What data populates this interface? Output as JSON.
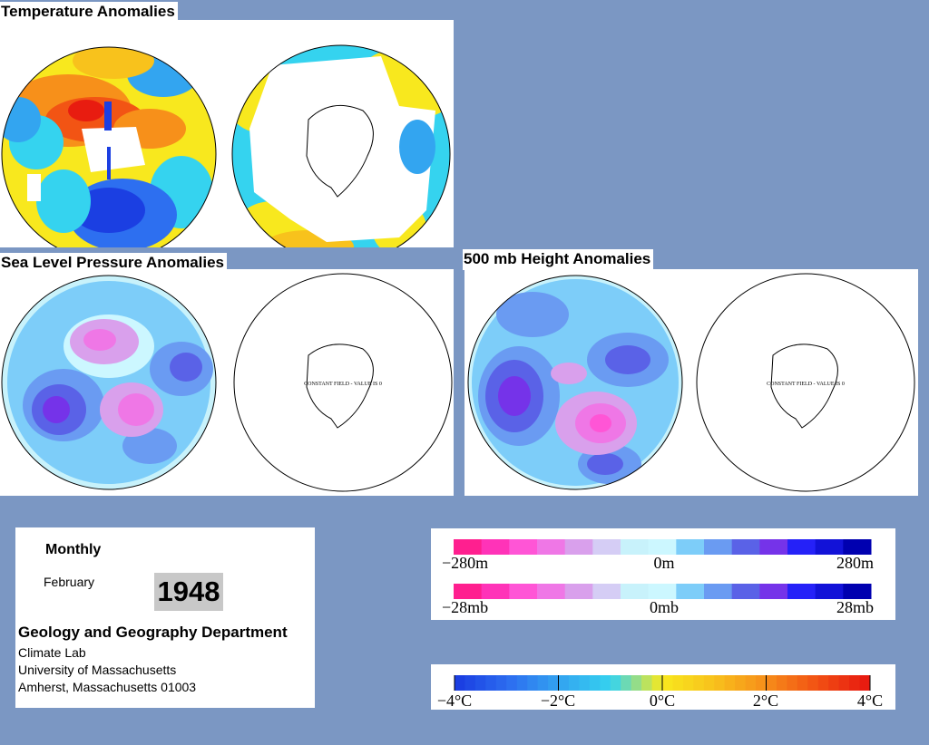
{
  "titles": {
    "temperature": "Temperature Anomalies",
    "slp": "Sea Level Pressure Anomalies",
    "height": "500 mb Height Anomalies"
  },
  "map_note": "CONSTANT FIELD - VALUE IS 0",
  "info": {
    "period": "Monthly",
    "month": "February",
    "year": "1948",
    "department": "Geology and Geography Department",
    "lab": "Climate Lab",
    "university": "University of Massachusetts",
    "address": "Amherst, Massachusetts 01003"
  },
  "legends": {
    "height": {
      "left": "−280m",
      "mid": "0m",
      "right": "280m"
    },
    "pressure": {
      "left": "−28mb",
      "mid": "0mb",
      "right": "28mb"
    },
    "temperature": {
      "l4": "−4°C",
      "l2": "−2°C",
      "l0": "0°C",
      "l2p": "2°C",
      "l4p": "4°C"
    }
  },
  "colors": {
    "background": "#7b97c3",
    "anomaly_scale": [
      "#ff1f8f",
      "#ff33b8",
      "#ff55d6",
      "#ef77e6",
      "#d9a0ec",
      "#d5cdf5",
      "#c8f2fb",
      "#ccf7ff",
      "#7dcdf9",
      "#6a9bf2",
      "#5a62e7",
      "#7533e9",
      "#2521f8",
      "#1212d8",
      "#0000b0"
    ],
    "temperature_scale": [
      "#1b3fe2",
      "#2d6ff0",
      "#33a5f0",
      "#35d3ef",
      "#f8e81e",
      "#f8c21c",
      "#f7901a",
      "#f25414",
      "#e81c10"
    ]
  }
}
